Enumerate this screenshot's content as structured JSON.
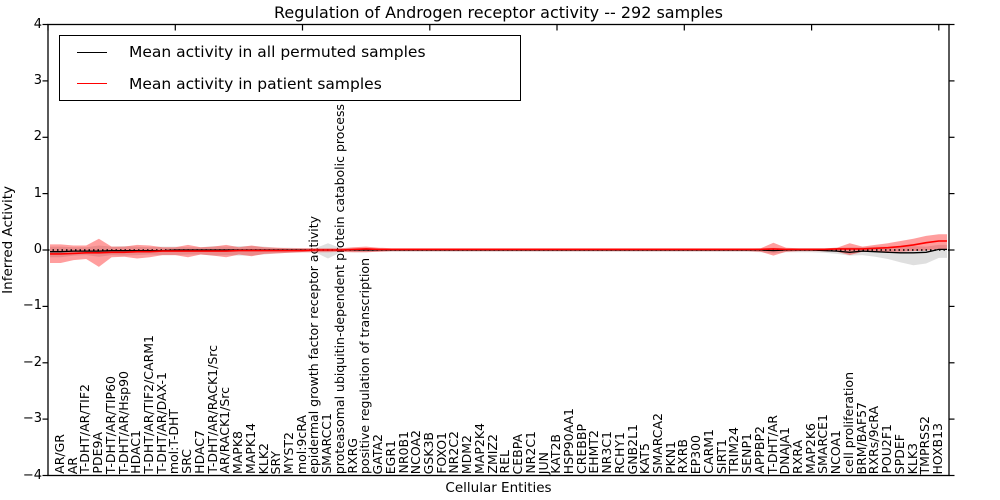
{
  "figure": {
    "title": "Regulation of Androgen receptor activity -- 292 samples",
    "xlabel": "Cellular Entities",
    "ylabel": "Inferred Activity"
  },
  "legend": {
    "entries": [
      {
        "label": "Mean activity in all permuted samples",
        "color": "#000000"
      },
      {
        "label": "Mean activity in patient samples",
        "color": "#ff0000"
      }
    ]
  },
  "chart_data": {
    "type": "line",
    "title": "Regulation of Androgen receptor activity -- 292 samples",
    "xlabel": "Cellular Entities",
    "ylabel": "Inferred Activity",
    "ylim": [
      -4,
      4
    ],
    "xlim": [
      0,
      70.8
    ],
    "grid": false,
    "legend_position": "upper left",
    "yticks": [
      -4,
      -3,
      -2,
      -1,
      0,
      1,
      2,
      3,
      4
    ],
    "yticklabels": [
      "−4",
      "−3",
      "−2",
      "−1",
      "0",
      "1",
      "2",
      "3",
      "4"
    ],
    "xticks_top": [
      0,
      10,
      20,
      30,
      40,
      50,
      60,
      70
    ],
    "zero_line": {
      "y": 0,
      "style": "dotted",
      "color": "#000000"
    },
    "categories": [
      "AR/GR",
      "AR",
      "T-DHT/AR/TIF2",
      "PDE9A",
      "T-DHT/AR/TIP60",
      "T-DHT/AR/Hsp90",
      "HDAC1",
      "T-DHT/AR/TIF2/CARM1",
      "T-DHT/AR/DAX-1",
      "mol:T-DHT",
      "SRC",
      "HDAC7",
      "T-DHT/AR/RACK1/Src",
      "AR/RACK1/Src",
      "MAPK8",
      "MAPK14",
      "KLK2",
      "SRY",
      "MYST2",
      "mol:9cRA",
      "epidermal growth factor receptor activity",
      "SMARCC1",
      "proteasomal ubiquitin-dependent protein catabolic process",
      "RXRG",
      "positive regulation of transcription",
      "GATA2",
      "EGR1",
      "NR0B1",
      "NCOA2",
      "GSK3B",
      "FOXO1",
      "NR2C2",
      "MDM2",
      "MAP2K4",
      "ZMIZ2",
      "REL",
      "CEBPA",
      "NR2C1",
      "JUN",
      "KAT2B",
      "HSP90AA1",
      "CREBBP",
      "EHMT2",
      "NR3C1",
      "RCHY1",
      "GNB2L1",
      "KAT5",
      "SMARCA2",
      "PKN1",
      "RXRB",
      "EP300",
      "CARM1",
      "SIRT1",
      "TRIM24",
      "SENP1",
      "APPBP2",
      "T-DHT/AR",
      "DNAJA1",
      "RXRA",
      "MAP2K6",
      "SMARCE1",
      "NCOA1",
      "cell proliferation",
      "BRM/BAF57",
      "RXRs/9cRA",
      "POU2F1",
      "SPDEF",
      "KLK3",
      "TMPRSS2",
      "HOXB13"
    ],
    "series": [
      {
        "name": "Mean activity in all permuted samples",
        "color": "#000000",
        "values": [
          -0.03,
          -0.02,
          -0.02,
          -0.02,
          -0.01,
          -0.01,
          -0.01,
          -0.01,
          -0.01,
          0,
          0,
          0,
          0,
          0,
          0,
          0,
          0,
          0,
          0,
          0,
          0,
          0,
          0,
          0,
          0,
          0,
          0,
          0,
          0,
          0,
          0,
          0,
          0,
          0,
          0,
          0,
          0,
          0,
          0,
          0,
          0,
          0,
          0,
          0,
          0,
          0,
          0,
          0,
          0,
          0,
          0,
          0,
          0,
          0,
          0,
          0,
          -0.01,
          0,
          0,
          0,
          -0.01,
          -0.02,
          -0.04,
          -0.02,
          -0.03,
          -0.04,
          -0.05,
          -0.05,
          -0.04,
          0.01
        ]
      },
      {
        "name": "Mean activity in patient samples",
        "color": "#ff0000",
        "values": [
          -0.07,
          -0.06,
          -0.05,
          -0.05,
          -0.04,
          -0.04,
          -0.03,
          -0.03,
          -0.02,
          -0.02,
          -0.02,
          -0.02,
          -0.02,
          -0.02,
          -0.01,
          -0.01,
          -0.01,
          -0.01,
          -0.01,
          -0.01,
          0,
          0,
          0,
          0.01,
          0.02,
          0.01,
          0.01,
          0.01,
          0.01,
          0.01,
          0.01,
          0.01,
          0.01,
          0.01,
          0.01,
          0.01,
          0.01,
          0.01,
          0.01,
          0.01,
          0.01,
          0.01,
          0.01,
          0.01,
          0.01,
          0.01,
          0.01,
          0.01,
          0.01,
          0.01,
          0.01,
          0.01,
          0.01,
          0.01,
          0.01,
          0.01,
          0.02,
          0.01,
          0.01,
          0.01,
          0.01,
          0.02,
          0.02,
          0.02,
          0.03,
          0.04,
          0.06,
          0.09,
          0.13,
          0.16
        ]
      }
    ],
    "bands": [
      {
        "name": "permuted-samples-range",
        "fill": "rgba(110,110,110,0.22)",
        "hi": [
          0.06,
          0.05,
          0.05,
          0.08,
          0.06,
          0.07,
          0.06,
          0.05,
          0.06,
          0.06,
          0.05,
          0.05,
          0.07,
          0.06,
          0.07,
          0.07,
          0.06,
          0.04,
          0.04,
          0.03,
          0.03,
          0.12,
          0.03,
          0.03,
          0.03,
          0.03,
          0.02,
          0.02,
          0.02,
          0.02,
          0.02,
          0.02,
          0.02,
          0.02,
          0.02,
          0.02,
          0.02,
          0.02,
          0.02,
          0.02,
          0.02,
          0.02,
          0.02,
          0.02,
          0.02,
          0.02,
          0.02,
          0.02,
          0.02,
          0.02,
          0.02,
          0.02,
          0.02,
          0.02,
          0.02,
          0.03,
          0.04,
          0.03,
          0.03,
          0.03,
          0.03,
          0.04,
          0.05,
          0.05,
          0.06,
          0.06,
          0.07,
          0.07,
          0.06,
          0.09
        ],
        "lo": [
          -0.13,
          -0.1,
          -0.09,
          -0.12,
          -0.09,
          -0.1,
          -0.09,
          -0.08,
          -0.09,
          -0.09,
          -0.08,
          -0.08,
          -0.1,
          -0.09,
          -0.1,
          -0.1,
          -0.08,
          -0.06,
          -0.05,
          -0.04,
          -0.04,
          -0.15,
          -0.04,
          -0.04,
          -0.04,
          -0.03,
          -0.03,
          -0.03,
          -0.03,
          -0.03,
          -0.03,
          -0.03,
          -0.03,
          -0.03,
          -0.03,
          -0.03,
          -0.03,
          -0.03,
          -0.03,
          -0.03,
          -0.03,
          -0.03,
          -0.03,
          -0.03,
          -0.03,
          -0.03,
          -0.03,
          -0.03,
          -0.03,
          -0.03,
          -0.03,
          -0.03,
          -0.03,
          -0.03,
          -0.03,
          -0.04,
          -0.06,
          -0.04,
          -0.04,
          -0.04,
          -0.05,
          -0.07,
          -0.1,
          -0.09,
          -0.12,
          -0.16,
          -0.22,
          -0.27,
          -0.24,
          -0.14
        ]
      },
      {
        "name": "patient-samples-range",
        "fill": "rgba(255,0,0,0.38)",
        "hi": [
          0.1,
          0.08,
          0.08,
          0.2,
          0.06,
          0.06,
          0.09,
          0.08,
          0.05,
          0.05,
          0.09,
          0.05,
          0.06,
          0.09,
          0.05,
          0.08,
          0.05,
          0.04,
          0.03,
          0.03,
          0.03,
          0.03,
          0.03,
          0.05,
          0.06,
          0.04,
          0.03,
          0.03,
          0.03,
          0.03,
          0.03,
          0.03,
          0.03,
          0.03,
          0.03,
          0.03,
          0.03,
          0.03,
          0.03,
          0.03,
          0.03,
          0.03,
          0.03,
          0.03,
          0.03,
          0.03,
          0.03,
          0.03,
          0.03,
          0.03,
          0.03,
          0.03,
          0.03,
          0.03,
          0.03,
          0.03,
          0.13,
          0.04,
          0.03,
          0.03,
          0.03,
          0.04,
          0.12,
          0.06,
          0.09,
          0.12,
          0.16,
          0.2,
          0.25,
          0.28
        ],
        "lo": [
          -0.23,
          -0.18,
          -0.16,
          -0.3,
          -0.13,
          -0.12,
          -0.15,
          -0.13,
          -0.09,
          -0.09,
          -0.13,
          -0.08,
          -0.1,
          -0.13,
          -0.08,
          -0.11,
          -0.07,
          -0.06,
          -0.05,
          -0.04,
          -0.04,
          -0.04,
          -0.03,
          -0.04,
          -0.04,
          -0.03,
          -0.02,
          -0.02,
          -0.02,
          -0.02,
          -0.02,
          -0.02,
          -0.02,
          -0.02,
          -0.02,
          -0.02,
          -0.02,
          -0.02,
          -0.02,
          -0.02,
          -0.02,
          -0.02,
          -0.02,
          -0.02,
          -0.02,
          -0.02,
          -0.02,
          -0.02,
          -0.02,
          -0.02,
          -0.02,
          -0.02,
          -0.02,
          -0.02,
          -0.02,
          -0.03,
          -0.1,
          -0.03,
          -0.02,
          -0.02,
          -0.02,
          -0.03,
          -0.09,
          -0.03,
          -0.03,
          -0.03,
          -0.03,
          -0.02,
          -0.01,
          0.02
        ]
      }
    ]
  }
}
